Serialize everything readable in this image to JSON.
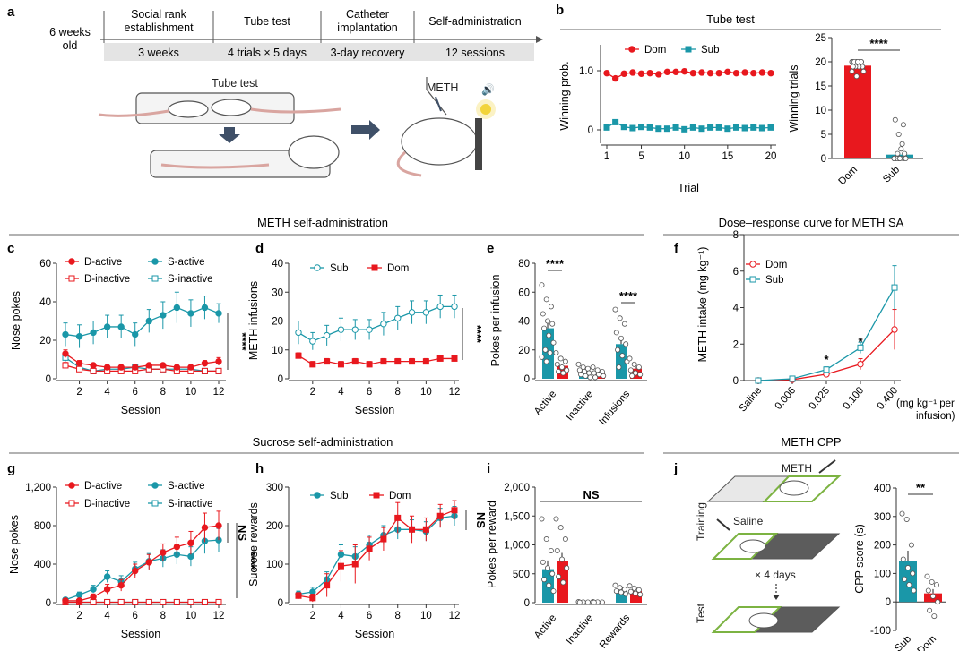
{
  "colors": {
    "dom": "#e8181e",
    "sub": "#1a97a8",
    "axis": "#333333",
    "box": "#e4e4e4"
  },
  "panel_a": {
    "label": "a",
    "age": [
      "6 weeks",
      "old"
    ],
    "phases": [
      {
        "title": [
          "Social rank",
          "establishment"
        ],
        "duration": "3 weeks"
      },
      {
        "title": [
          "Tube test"
        ],
        "duration": "4 trials × 5 days"
      },
      {
        "title": [
          "Catheter",
          "implantation"
        ],
        "duration": "3-day recovery"
      },
      {
        "title": [
          "Self-administration"
        ],
        "duration": "12 sessions"
      }
    ],
    "illus_tube_label": "Tube test",
    "illus_drug_label": "METH"
  },
  "panel_j_illus": {
    "meth": "METH",
    "saline": "Saline",
    "training": "Training",
    "repeat": "× 4 days",
    "test": "Test"
  },
  "chart_data": [
    {
      "panel": "b",
      "section_title": "Tube test",
      "type": "line",
      "xlabel": "Trial",
      "ylabel": "Winning prob.",
      "xticks": [
        1,
        5,
        10,
        15,
        20
      ],
      "yticks": [
        "0",
        "1.0"
      ],
      "series": [
        {
          "name": "Dom",
          "x": [
            1,
            2,
            3,
            4,
            5,
            6,
            7,
            8,
            9,
            10,
            11,
            12,
            13,
            14,
            15,
            16,
            17,
            18,
            19,
            20
          ],
          "values": [
            0.96,
            0.87,
            0.95,
            0.97,
            0.95,
            0.96,
            0.94,
            0.98,
            0.98,
            0.99,
            0.96,
            0.97,
            0.96,
            0.96,
            0.98,
            0.96,
            0.97,
            0.96,
            0.97,
            0.96
          ]
        },
        {
          "name": "Sub",
          "x": [
            1,
            2,
            3,
            4,
            5,
            6,
            7,
            8,
            9,
            10,
            11,
            12,
            13,
            14,
            15,
            16,
            17,
            18,
            19,
            20
          ],
          "values": [
            0.04,
            0.13,
            0.05,
            0.03,
            0.05,
            0.04,
            0.02,
            0.02,
            0.04,
            0.01,
            0.04,
            0.02,
            0.04,
            0.04,
            0.02,
            0.04,
            0.03,
            0.04,
            0.03,
            0.04
          ]
        }
      ]
    },
    {
      "panel": "b",
      "type": "bar",
      "ylabel": "Winning trials",
      "ylim": [
        0,
        25
      ],
      "yticks": [
        0,
        5,
        10,
        15,
        20,
        25
      ],
      "categories": [
        "Dom",
        "Sub"
      ],
      "values": [
        19.2,
        0.8
      ],
      "errors": [
        0.4,
        0.6
      ],
      "significance": "****"
    },
    {
      "panel": "c",
      "section_title": "METH self-administration",
      "type": "line",
      "xlabel": "Session",
      "ylabel": "Nose pokes",
      "ylim": [
        0,
        60
      ],
      "xticks": [
        2,
        4,
        6,
        8,
        10,
        12
      ],
      "yticks": [
        0,
        20,
        40,
        60
      ],
      "significance": "****",
      "x": [
        1,
        2,
        3,
        4,
        5,
        6,
        7,
        8,
        9,
        10,
        11,
        12
      ],
      "series": [
        {
          "name": "D-active",
          "values": [
            13,
            8,
            7,
            6,
            6,
            6,
            7,
            7,
            6,
            6,
            8,
            9
          ],
          "err": [
            2,
            1.5,
            1,
            1,
            1,
            1,
            1,
            1,
            1,
            1,
            1.5,
            2
          ]
        },
        {
          "name": "D-inactive",
          "values": [
            7,
            5,
            4,
            4,
            4,
            4,
            5,
            5,
            4,
            4,
            4,
            4
          ],
          "err": [
            1.5,
            1,
            1,
            1,
            1,
            1,
            1,
            1,
            1,
            1,
            1,
            1
          ]
        },
        {
          "name": "S-active",
          "values": [
            23,
            22,
            24,
            27,
            27,
            23,
            30,
            33,
            37,
            34,
            37,
            34
          ],
          "err": [
            6,
            6,
            6,
            6,
            6,
            6,
            6,
            7,
            8,
            7,
            6,
            5
          ]
        },
        {
          "name": "S-inactive",
          "values": [
            11,
            6,
            4,
            5,
            5,
            6,
            5,
            5,
            5,
            5,
            4,
            4
          ],
          "err": [
            2,
            1.5,
            1,
            1,
            1,
            1,
            1,
            1,
            1,
            1,
            1,
            1
          ]
        }
      ]
    },
    {
      "panel": "d",
      "type": "line",
      "xlabel": "Session",
      "ylabel": "METH infusions",
      "ylim": [
        0,
        40
      ],
      "xticks": [
        2,
        4,
        6,
        8,
        10,
        12
      ],
      "yticks": [
        0,
        10,
        20,
        30,
        40
      ],
      "significance": "****",
      "x": [
        1,
        2,
        3,
        4,
        5,
        6,
        7,
        8,
        9,
        10,
        11,
        12
      ],
      "series": [
        {
          "name": "Sub",
          "values": [
            16,
            13,
            15,
            17,
            17,
            17,
            19,
            21,
            23,
            23,
            25,
            25
          ],
          "err": [
            4,
            3,
            3.5,
            4,
            3.5,
            3.5,
            4,
            4,
            4,
            4,
            4,
            4
          ]
        },
        {
          "name": "Dom",
          "values": [
            8,
            5,
            6,
            5,
            6,
            5,
            6,
            6,
            6,
            6,
            7,
            7
          ],
          "err": [
            1,
            1,
            1,
            1,
            1,
            1,
            1,
            1,
            1,
            1,
            1,
            1
          ]
        }
      ]
    },
    {
      "panel": "e",
      "type": "bar",
      "ylabel": "Pokes per infusion",
      "ylim": [
        0,
        80
      ],
      "yticks": [
        0,
        20,
        40,
        60,
        80
      ],
      "categories": [
        "Active",
        "Inactive",
        "Infusions"
      ],
      "series": [
        {
          "name": "Sub",
          "values": [
            35,
            5,
            24
          ],
          "err": [
            5,
            1.5,
            4
          ]
        },
        {
          "name": "Dom",
          "values": [
            9,
            4,
            7
          ],
          "err": [
            1.5,
            1,
            1.5
          ]
        }
      ],
      "significance": [
        "****",
        "",
        "****"
      ]
    },
    {
      "panel": "f",
      "section_title": "Dose–response curve for METH SA",
      "type": "line",
      "ylabel": "METH intake (mg kg⁻¹)",
      "xunit": [
        "(mg kg⁻¹ per",
        "infusion)"
      ],
      "ylim": [
        0,
        8
      ],
      "yticks": [
        0,
        2,
        4,
        6,
        8
      ],
      "categories": [
        "Saline",
        "0.006",
        "0.025",
        "0.100",
        "0.400"
      ],
      "series": [
        {
          "name": "Dom",
          "values": [
            0,
            0.05,
            0.35,
            0.9,
            2.8
          ],
          "err": [
            0,
            0.03,
            0.1,
            0.3,
            1.1
          ]
        },
        {
          "name": "Sub",
          "values": [
            0,
            0.1,
            0.6,
            1.8,
            5.1
          ],
          "err": [
            0,
            0.04,
            0.15,
            0.3,
            1.2
          ]
        }
      ],
      "significance": [
        "",
        "",
        "*",
        "*",
        ""
      ]
    },
    {
      "panel": "g",
      "section_title": "Sucrose self-administration",
      "type": "line",
      "xlabel": "Session",
      "ylabel": "Nose pokes",
      "ylim": [
        0,
        1200
      ],
      "xticks": [
        2,
        4,
        6,
        8,
        10,
        12
      ],
      "yticks": [
        "0",
        "400",
        "800",
        "1,200"
      ],
      "significance": [
        "NS",
        "****"
      ],
      "x": [
        1,
        2,
        3,
        4,
        5,
        6,
        7,
        8,
        9,
        10,
        11,
        12
      ],
      "series": [
        {
          "name": "D-active",
          "values": [
            20,
            20,
            60,
            140,
            180,
            330,
            420,
            520,
            580,
            620,
            780,
            800
          ],
          "err": [
            10,
            15,
            30,
            50,
            60,
            70,
            80,
            90,
            100,
            120,
            150,
            150
          ]
        },
        {
          "name": "D-inactive",
          "values": [
            5,
            5,
            5,
            5,
            5,
            5,
            5,
            5,
            5,
            5,
            5,
            5
          ],
          "err": [
            2,
            2,
            2,
            2,
            2,
            2,
            2,
            2,
            2,
            2,
            2,
            2
          ]
        },
        {
          "name": "S-active",
          "values": [
            30,
            80,
            140,
            270,
            220,
            350,
            430,
            460,
            500,
            480,
            640,
            650
          ],
          "err": [
            15,
            30,
            40,
            60,
            60,
            70,
            80,
            90,
            100,
            100,
            130,
            120
          ]
        },
        {
          "name": "S-inactive",
          "values": [
            5,
            5,
            5,
            5,
            5,
            5,
            5,
            5,
            5,
            5,
            5,
            5
          ],
          "err": [
            2,
            2,
            2,
            2,
            2,
            2,
            2,
            2,
            2,
            2,
            2,
            2
          ]
        }
      ]
    },
    {
      "panel": "h",
      "type": "line",
      "xlabel": "Session",
      "ylabel": "Sucrose rewards",
      "ylim": [
        0,
        300
      ],
      "xticks": [
        2,
        4,
        6,
        8,
        10,
        12
      ],
      "yticks": [
        0,
        100,
        200,
        300
      ],
      "significance": "NS",
      "x": [
        1,
        2,
        3,
        4,
        5,
        6,
        7,
        8,
        9,
        10,
        11,
        12
      ],
      "series": [
        {
          "name": "Sub",
          "values": [
            22,
            28,
            60,
            125,
            120,
            150,
            175,
            190,
            190,
            185,
            220,
            225
          ],
          "err": [
            8,
            12,
            20,
            25,
            25,
            25,
            25,
            25,
            25,
            25,
            25,
            25
          ]
        },
        {
          "name": "Dom",
          "values": [
            18,
            12,
            45,
            95,
            100,
            140,
            165,
            220,
            190,
            190,
            225,
            240
          ],
          "err": [
            8,
            10,
            30,
            40,
            50,
            30,
            30,
            40,
            35,
            30,
            30,
            25
          ]
        }
      ]
    },
    {
      "panel": "i",
      "type": "bar",
      "ylabel": "Pokes per reward",
      "ylim": [
        0,
        2000
      ],
      "yticks": [
        "0",
        "500",
        "1,000",
        "1,500",
        "2,000"
      ],
      "categories": [
        "Active",
        "Inactive",
        "Rewards"
      ],
      "significance": "NS",
      "series": [
        {
          "name": "Sub",
          "values": [
            580,
            10,
            210
          ],
          "err": [
            150,
            5,
            40
          ]
        },
        {
          "name": "Dom",
          "values": [
            720,
            10,
            200
          ],
          "err": [
            140,
            5,
            35
          ]
        }
      ]
    },
    {
      "panel": "j",
      "section_title": "METH CPP",
      "type": "bar",
      "ylabel": "CPP score (s)",
      "ylim": [
        -100,
        400
      ],
      "yticks": [
        -100,
        0,
        100,
        200,
        300,
        400
      ],
      "categories": [
        "Sub",
        "Dom"
      ],
      "values": [
        145,
        30
      ],
      "errors": [
        35,
        15
      ],
      "significance": "**"
    }
  ]
}
